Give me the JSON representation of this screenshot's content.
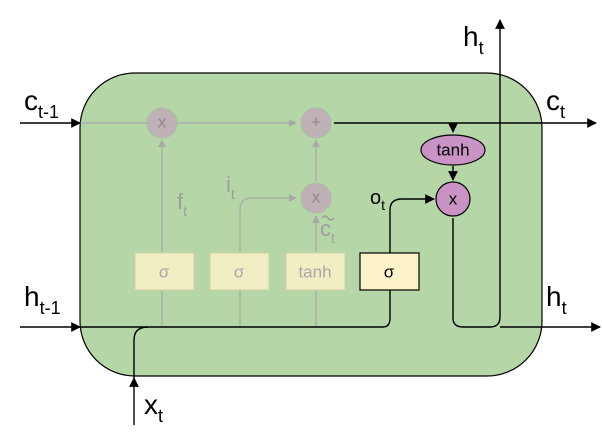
{
  "labels": {
    "c_prev": {
      "base": "c",
      "sub": "t-1"
    },
    "c_out": {
      "base": "c",
      "sub": "t"
    },
    "h_prev": {
      "base": "h",
      "sub": "t-1"
    },
    "h_out_top": {
      "base": "h",
      "sub": "t"
    },
    "h_out_right": {
      "base": "h",
      "sub": "t"
    },
    "x_in": {
      "base": "x",
      "sub": "t"
    },
    "f_gate": {
      "base": "f",
      "sub": "t"
    },
    "i_gate": {
      "base": "i",
      "sub": "t"
    },
    "c_tilde": {
      "base": "c",
      "sub": "t"
    },
    "o_gate": {
      "base": "o",
      "sub": "t"
    }
  },
  "ops": {
    "forget_mult": "x",
    "cell_add": "+",
    "input_mult": "x",
    "output_mult": "x",
    "cell_tanh": "tanh"
  },
  "layers": {
    "forget_sigma": "σ",
    "input_sigma": "σ",
    "candidate_tanh": "tanh",
    "output_sigma": "σ"
  },
  "colors": {
    "cell_bg": "#b5d6a7",
    "op_node": "#c994c5",
    "layer_box": "#fdf3c8",
    "faded_line": "#a8a8a8",
    "line": "#000000"
  }
}
